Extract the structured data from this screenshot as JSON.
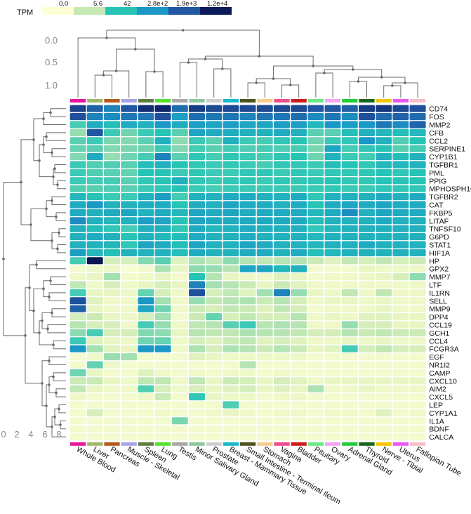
{
  "chart_data": {
    "type": "heatmap",
    "title": "",
    "colorbar": {
      "label": "TPM",
      "ticks": [
        "0.0",
        "5.6",
        "42",
        "2.8e+2",
        "1.9e+3",
        "1.2e+4"
      ],
      "colors": [
        "#fdfed6",
        "#c6e8b4",
        "#27c4b6",
        "#1c98c7",
        "#2157a2",
        "#0b1b5a"
      ]
    },
    "column_dendrogram_axis": {
      "ticks": [
        "0.0",
        "0.5",
        "1.0"
      ]
    },
    "row_dendrogram_axis": {
      "ticks": [
        "0",
        "2",
        "4",
        "6",
        "8"
      ]
    },
    "tissue_colors": [
      "#e6179b",
      "#a2b76a",
      "#b55a1c",
      "#a9a4e6",
      "#5f7e41",
      "#56e12f",
      "#a8a8a8",
      "#8ec79a",
      "#cfcfcf",
      "#19b9c9",
      "#4f5320",
      "#f4cf8e",
      "#ea4e8d",
      "#d01b1b",
      "#67ea87",
      "#f2a8ee",
      "#1fcf38",
      "#17661a",
      "#f2c600",
      "#e85af0",
      "#f5c1c9"
    ],
    "columns": [
      "Whole Blood",
      "Liver",
      "Pancreas",
      "Muscle - Skeletal",
      "Spleen",
      "Lung",
      "Testis",
      "Minor Salivary Gland",
      "Prostate",
      "Breast - Mammary Tissue",
      "Small Intestine - Terminal Ileum",
      "Stomach",
      "Vagina",
      "Bladder",
      "Pituitary",
      "Ovary",
      "Adrenal Gland",
      "Thyroid",
      "Nerve - Tibial",
      "Uterus",
      "Fallopian Tube"
    ],
    "rows": [
      "CD74",
      "FOS",
      "MMP2",
      "CFB",
      "CCL2",
      "SERPINE1",
      "CYP1B1",
      "TGFBR1",
      "PML",
      "PPIG",
      "MPHOSPH10",
      "TGFBR2",
      "CAT",
      "FKBP5",
      "LITAF",
      "TNFSF10",
      "G6PD",
      "STAT1",
      "HIF1A",
      "HP",
      "GPX2",
      "MMP7",
      "LTF",
      "IL1RN",
      "SELL",
      "MMP9",
      "DPP4",
      "CCL19",
      "GCH1",
      "CCL4",
      "FCGR3A",
      "EGF",
      "NR1I2",
      "CAMP",
      "CXCL10",
      "AIM2",
      "CXCL5",
      "LEP",
      "CYP1A1",
      "IL1A",
      "BDNF",
      "CALCA"
    ],
    "values": [
      [
        3.9,
        3.5,
        3.2,
        3.6,
        4.2,
        4.4,
        3.4,
        4.0,
        3.8,
        3.8,
        3.8,
        3.8,
        3.8,
        3.8,
        3.6,
        3.6,
        3.5,
        4.0,
        4.1,
        3.8,
        3.7
      ],
      [
        3.7,
        3.2,
        3.1,
        3.3,
        3.3,
        3.7,
        2.9,
        3.4,
        3.3,
        3.3,
        3.2,
        3.3,
        3.3,
        3.4,
        3.1,
        3.3,
        3.1,
        3.7,
        3.4,
        3.5,
        3.4
      ],
      [
        2.0,
        2.7,
        2.4,
        2.7,
        2.6,
        3.0,
        2.7,
        2.9,
        2.8,
        2.9,
        2.8,
        2.8,
        2.9,
        2.9,
        2.5,
        3.0,
        2.9,
        3.0,
        3.3,
        3.1,
        3.5
      ],
      [
        1.2,
        3.6,
        2.1,
        1.6,
        2.1,
        2.3,
        1.8,
        2.8,
        2.7,
        2.7,
        2.6,
        2.6,
        2.7,
        2.6,
        1.8,
        1.8,
        2.4,
        2.6,
        2.5,
        2.4,
        2.5
      ],
      [
        1.8,
        2.1,
        1.5,
        1.4,
        1.8,
        2.6,
        1.3,
        2.1,
        1.8,
        2.6,
        2.1,
        2.0,
        2.2,
        2.3,
        1.6,
        2.1,
        2.2,
        3.0,
        2.6,
        1.9,
        2.3
      ],
      [
        1.7,
        1.8,
        1.4,
        1.5,
        1.6,
        2.1,
        1.4,
        2.0,
        1.8,
        2.0,
        1.9,
        2.0,
        1.9,
        2.0,
        1.5,
        2.8,
        2.0,
        2.2,
        2.3,
        1.8,
        2.0
      ],
      [
        1.4,
        2.7,
        1.2,
        1.6,
        2.0,
        3.2,
        1.8,
        2.2,
        2.0,
        2.2,
        2.1,
        2.0,
        2.2,
        2.3,
        1.6,
        2.6,
        2.1,
        2.0,
        2.6,
        2.4,
        2.6
      ],
      [
        2.1,
        1.9,
        1.9,
        1.8,
        2.4,
        2.6,
        2.3,
        2.2,
        2.1,
        2.2,
        2.1,
        2.0,
        2.2,
        2.2,
        2.1,
        2.4,
        2.3,
        2.2,
        2.5,
        2.5,
        2.6
      ],
      [
        2.1,
        1.9,
        1.8,
        1.7,
        2.3,
        2.3,
        2.1,
        2.2,
        2.1,
        2.1,
        2.2,
        2.2,
        2.1,
        2.2,
        2.1,
        2.2,
        2.2,
        2.2,
        2.3,
        2.2,
        2.3
      ],
      [
        2.1,
        2.0,
        2.0,
        1.8,
        2.2,
        2.3,
        2.6,
        2.2,
        2.1,
        2.2,
        2.2,
        2.1,
        2.2,
        2.2,
        2.2,
        2.3,
        2.2,
        2.2,
        2.3,
        2.3,
        2.3
      ],
      [
        1.9,
        1.8,
        1.9,
        1.8,
        2.1,
        2.2,
        2.3,
        2.1,
        2.0,
        2.1,
        2.1,
        2.1,
        2.1,
        2.1,
        2.1,
        2.2,
        2.1,
        2.1,
        2.2,
        2.2,
        2.2
      ],
      [
        2.5,
        2.3,
        2.1,
        2.1,
        2.6,
        2.9,
        2.0,
        2.6,
        2.6,
        2.7,
        2.7,
        2.6,
        2.6,
        2.7,
        2.2,
        2.6,
        2.6,
        2.6,
        2.7,
        2.6,
        2.7
      ],
      [
        2.7,
        3.0,
        2.6,
        2.6,
        2.7,
        2.7,
        2.3,
        2.7,
        2.6,
        2.8,
        2.7,
        2.7,
        2.6,
        2.7,
        2.3,
        2.7,
        2.8,
        2.7,
        2.8,
        2.7,
        2.7
      ],
      [
        2.7,
        2.6,
        2.7,
        2.8,
        2.6,
        2.7,
        2.5,
        2.8,
        2.7,
        2.8,
        2.7,
        2.7,
        2.7,
        2.7,
        2.5,
        2.7,
        3.1,
        2.6,
        2.8,
        2.7,
        2.7
      ],
      [
        3.1,
        2.6,
        2.5,
        2.6,
        2.9,
        2.8,
        2.3,
        2.8,
        2.7,
        2.7,
        2.7,
        2.7,
        2.7,
        2.7,
        2.4,
        2.6,
        2.6,
        2.6,
        2.7,
        2.6,
        2.6
      ],
      [
        2.6,
        2.4,
        2.2,
        2.0,
        2.6,
        2.6,
        2.2,
        2.7,
        2.5,
        2.6,
        2.7,
        2.6,
        2.6,
        2.6,
        2.2,
        2.5,
        2.6,
        2.6,
        2.6,
        2.6,
        2.6
      ],
      [
        2.6,
        2.7,
        2.6,
        2.3,
        2.6,
        2.5,
        2.4,
        2.7,
        2.6,
        2.6,
        2.7,
        2.6,
        2.6,
        2.6,
        2.5,
        2.6,
        2.6,
        2.6,
        2.6,
        2.6,
        2.6
      ],
      [
        2.6,
        2.6,
        2.5,
        2.2,
        2.8,
        2.7,
        2.4,
        2.8,
        2.6,
        2.6,
        2.8,
        2.7,
        2.6,
        2.6,
        2.5,
        2.6,
        2.6,
        2.7,
        2.6,
        2.6,
        2.6
      ],
      [
        2.9,
        2.5,
        2.4,
        2.6,
        2.6,
        2.6,
        2.4,
        2.7,
        2.6,
        2.6,
        2.7,
        2.7,
        2.6,
        2.7,
        2.4,
        2.5,
        2.6,
        2.6,
        2.6,
        2.6,
        2.6
      ],
      [
        2.0,
        5.0,
        0.6,
        0.6,
        1.4,
        1.8,
        0.5,
        1.0,
        0.8,
        1.3,
        0.9,
        0.8,
        0.9,
        0.9,
        0.7,
        0.5,
        0.8,
        0.6,
        0.8,
        0.6,
        0.7
      ],
      [
        0.2,
        0.3,
        0.3,
        0.1,
        0.2,
        1.0,
        0.4,
        1.3,
        1.2,
        0.9,
        2.8,
        2.8,
        2.5,
        2.6,
        0.2,
        0.2,
        0.2,
        0.4,
        0.3,
        0.3,
        0.3
      ],
      [
        0.3,
        0.4,
        1.1,
        0.2,
        0.3,
        0.4,
        0.2,
        2.3,
        0.9,
        0.4,
        0.3,
        0.3,
        0.5,
        0.4,
        0.2,
        0.3,
        0.3,
        0.3,
        0.4,
        0.6,
        1.3
      ],
      [
        0.8,
        0.3,
        0.6,
        0.3,
        0.4,
        0.6,
        0.4,
        3.2,
        1.1,
        0.9,
        0.7,
        0.4,
        0.7,
        0.5,
        0.3,
        0.3,
        0.3,
        0.3,
        0.3,
        0.3,
        0.3
      ],
      [
        2.0,
        0.4,
        0.4,
        0.3,
        1.7,
        0.6,
        0.3,
        3.7,
        0.6,
        0.8,
        0.5,
        1.1,
        3.2,
        1.2,
        0.4,
        0.3,
        0.8,
        0.3,
        0.8,
        0.3,
        0.3
      ],
      [
        3.7,
        0.5,
        0.3,
        0.3,
        3.0,
        1.1,
        0.3,
        1.2,
        0.8,
        0.9,
        1.0,
        0.7,
        0.9,
        0.6,
        0.3,
        0.4,
        0.4,
        0.3,
        0.4,
        0.3,
        0.3
      ],
      [
        3.5,
        0.4,
        0.3,
        0.3,
        2.8,
        1.6,
        0.3,
        0.7,
        0.6,
        0.8,
        0.7,
        0.5,
        0.8,
        0.6,
        0.2,
        0.3,
        0.3,
        0.3,
        0.4,
        0.3,
        0.3
      ],
      [
        0.6,
        0.7,
        0.4,
        0.3,
        0.6,
        1.1,
        0.2,
        0.7,
        1.7,
        0.6,
        0.8,
        0.6,
        0.6,
        0.9,
        0.3,
        0.4,
        0.3,
        0.5,
        0.5,
        0.4,
        0.4
      ],
      [
        0.9,
        0.6,
        0.6,
        0.3,
        2.0,
        1.2,
        0.3,
        0.8,
        0.9,
        1.8,
        2.1,
        0.9,
        1.0,
        0.9,
        0.3,
        0.3,
        1.2,
        0.6,
        0.6,
        0.4,
        0.4
      ],
      [
        1.3,
        2.0,
        0.6,
        0.6,
        1.4,
        1.3,
        0.4,
        0.9,
        0.8,
        0.8,
        1.0,
        0.9,
        0.9,
        0.8,
        0.6,
        0.6,
        0.9,
        0.7,
        0.8,
        0.7,
        0.7
      ],
      [
        2.1,
        0.5,
        0.4,
        0.3,
        1.6,
        1.7,
        0.3,
        0.6,
        0.5,
        0.7,
        0.8,
        0.5,
        0.6,
        0.5,
        0.3,
        0.3,
        0.4,
        0.3,
        0.4,
        0.3,
        0.3
      ],
      [
        3.0,
        1.1,
        0.5,
        0.4,
        3.0,
        3.0,
        0.3,
        1.0,
        0.6,
        1.0,
        0.9,
        0.7,
        0.9,
        0.7,
        0.4,
        0.5,
        2.0,
        0.6,
        0.8,
        0.6,
        0.6
      ],
      [
        0.2,
        0.3,
        1.2,
        1.1,
        0.2,
        0.2,
        0.2,
        0.5,
        0.4,
        0.3,
        0.3,
        0.3,
        0.3,
        0.3,
        0.2,
        0.2,
        0.2,
        0.2,
        0.2,
        0.2,
        0.2
      ],
      [
        0.2,
        1.7,
        0.3,
        0.2,
        0.2,
        0.2,
        0.2,
        0.2,
        0.2,
        0.2,
        0.9,
        0.2,
        0.2,
        0.2,
        0.2,
        0.2,
        0.2,
        0.2,
        0.2,
        0.2,
        0.2
      ],
      [
        1.6,
        0.4,
        0.2,
        0.2,
        0.5,
        0.3,
        0.2,
        0.3,
        0.2,
        0.3,
        0.3,
        0.2,
        0.3,
        0.2,
        0.2,
        0.2,
        0.2,
        0.2,
        0.2,
        0.2,
        0.2
      ],
      [
        0.7,
        0.7,
        0.4,
        0.3,
        0.8,
        0.8,
        0.3,
        0.8,
        0.4,
        0.7,
        0.6,
        0.4,
        0.6,
        0.5,
        0.3,
        0.4,
        0.4,
        0.4,
        0.4,
        0.4,
        0.4
      ],
      [
        0.8,
        0.4,
        0.3,
        0.3,
        1.9,
        0.6,
        0.3,
        0.6,
        0.4,
        0.5,
        0.6,
        0.4,
        0.5,
        0.4,
        1.0,
        0.3,
        0.3,
        0.4,
        0.3,
        0.3,
        0.3
      ],
      [
        0.3,
        0.2,
        0.2,
        0.2,
        0.3,
        0.7,
        0.2,
        2.2,
        0.4,
        0.3,
        0.3,
        0.2,
        0.3,
        0.3,
        0.2,
        0.2,
        0.2,
        0.2,
        0.2,
        0.2,
        0.2
      ],
      [
        0.2,
        0.2,
        0.2,
        0.2,
        0.2,
        0.2,
        0.2,
        0.2,
        0.2,
        1.9,
        0.2,
        0.2,
        0.2,
        0.2,
        0.2,
        0.2,
        0.2,
        0.2,
        0.2,
        0.2,
        0.2
      ],
      [
        0.2,
        0.6,
        0.2,
        0.2,
        0.2,
        0.3,
        0.2,
        0.2,
        0.3,
        0.4,
        0.3,
        0.2,
        0.3,
        0.3,
        0.2,
        0.3,
        0.3,
        0.2,
        0.5,
        0.2,
        0.3
      ],
      [
        0.2,
        0.2,
        0.2,
        0.2,
        0.2,
        0.2,
        1.5,
        0.2,
        0.2,
        0.2,
        0.2,
        0.2,
        0.2,
        0.2,
        0.2,
        0.2,
        0.2,
        0.2,
        0.2,
        0.2,
        0.2
      ],
      [
        0.2,
        0.2,
        0.2,
        0.2,
        0.2,
        0.2,
        0.2,
        0.2,
        0.2,
        0.2,
        0.2,
        0.2,
        0.2,
        0.2,
        0.2,
        0.2,
        0.2,
        0.2,
        0.2,
        0.2,
        0.2
      ],
      [
        0.2,
        0.2,
        0.2,
        0.2,
        0.2,
        0.2,
        0.2,
        0.2,
        0.2,
        0.2,
        0.2,
        0.2,
        0.2,
        0.2,
        0.2,
        0.2,
        0.2,
        0.2,
        0.2,
        0.2,
        0.2
      ]
    ],
    "value_scale": "log10(TPM + 1)"
  }
}
